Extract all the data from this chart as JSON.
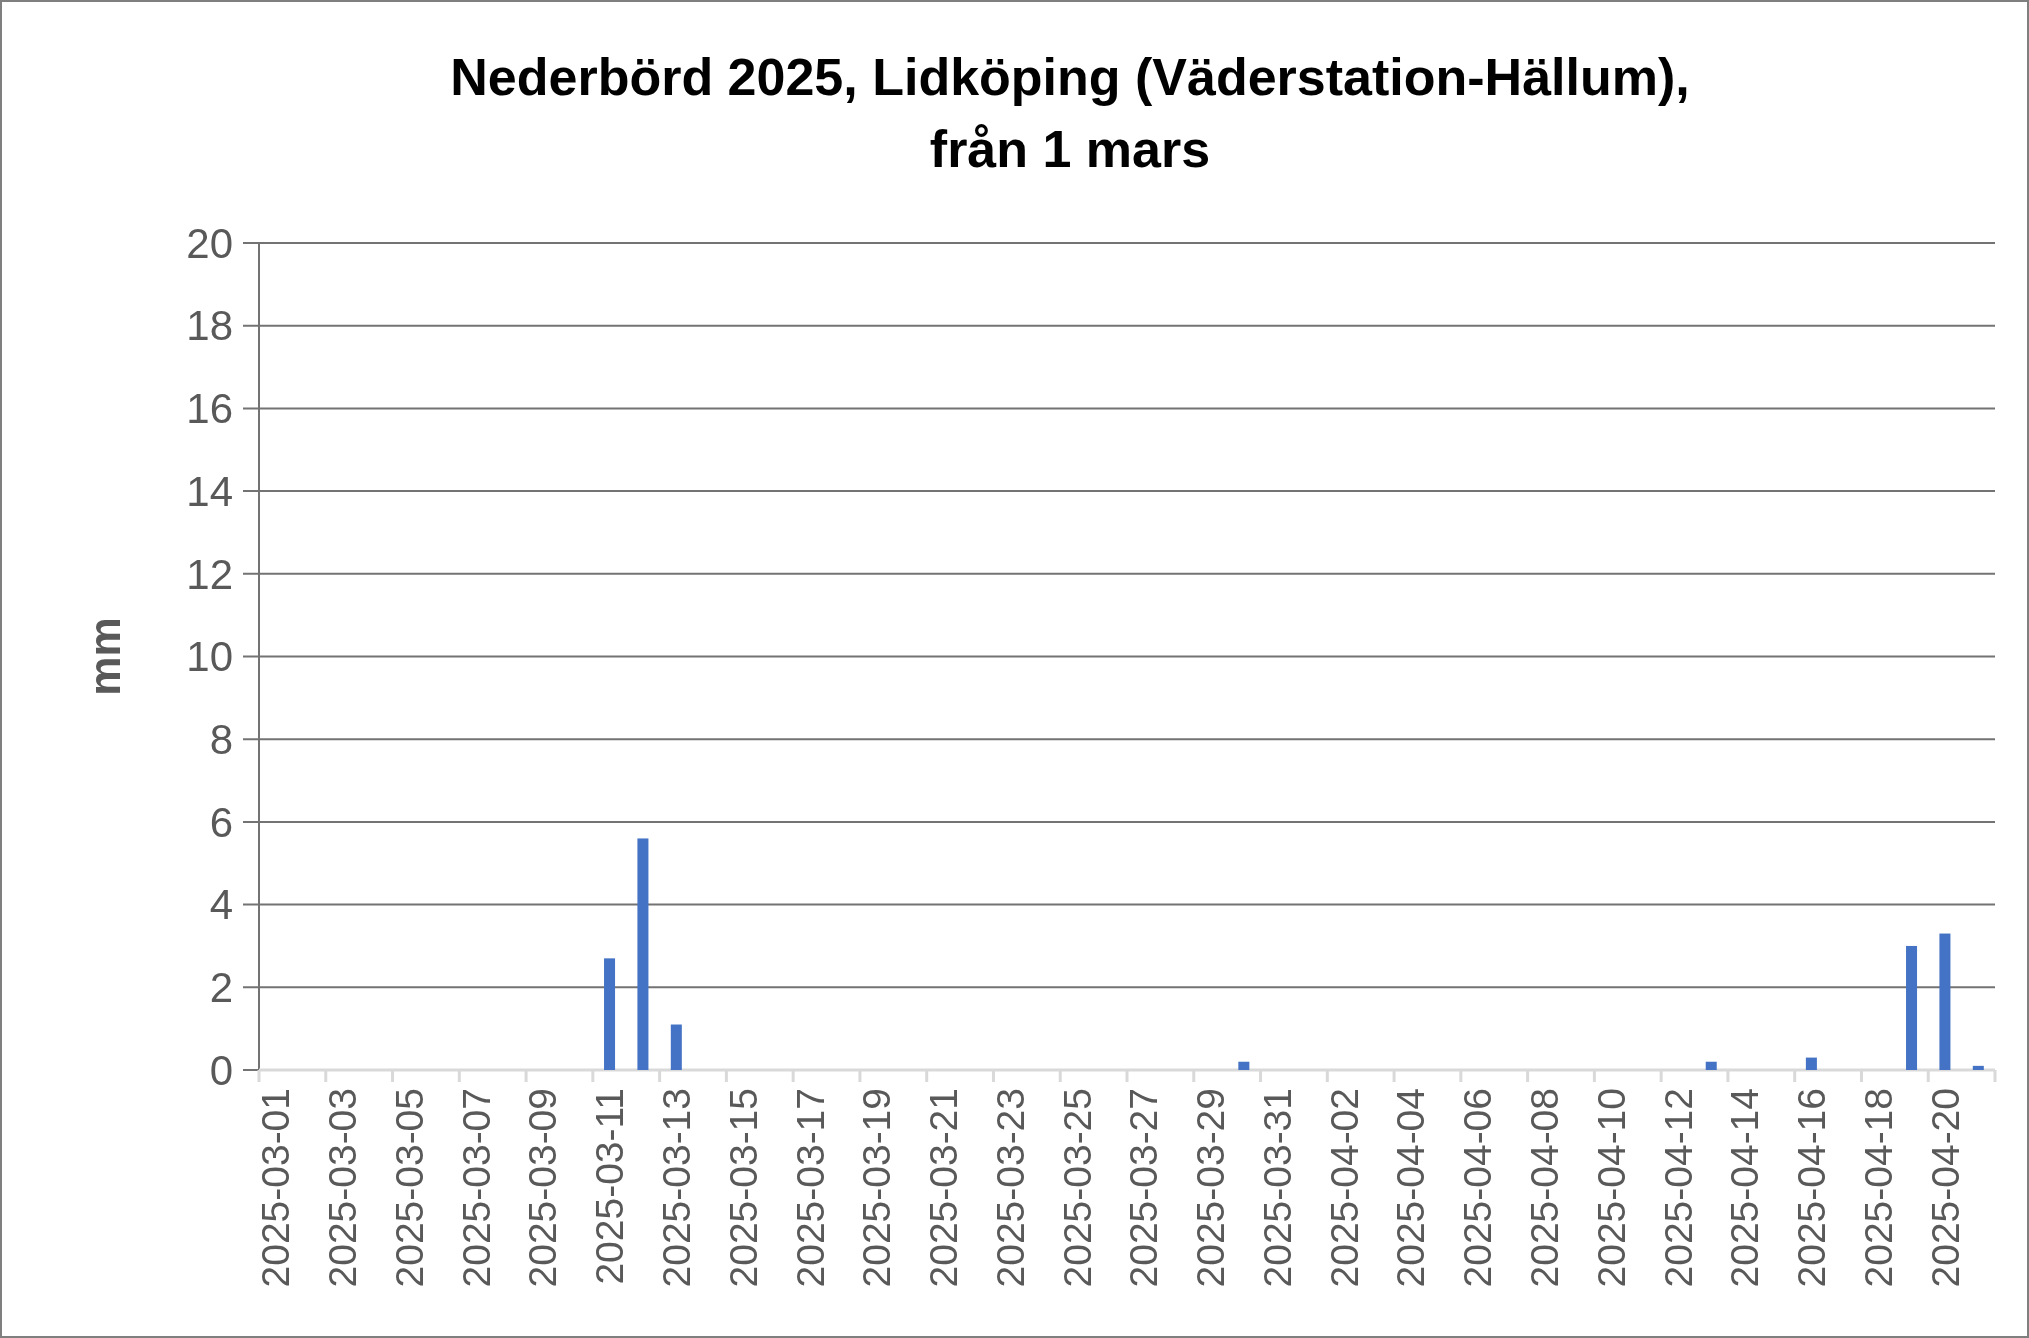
{
  "chart_data": {
    "type": "bar",
    "title": "Nederbörd 2025, Lidköping (Väderstation-Hällum),\nfrån 1 mars",
    "ylabel": "mm",
    "categories": [
      "2025-03-01",
      null,
      "2025-03-03",
      null,
      "2025-03-05",
      null,
      "2025-03-07",
      null,
      "2025-03-09",
      null,
      "2025-03-11",
      null,
      "2025-03-13",
      null,
      "2025-03-15",
      null,
      "2025-03-17",
      null,
      "2025-03-19",
      null,
      "2025-03-21",
      null,
      "2025-03-23",
      null,
      "2025-03-25",
      null,
      "2025-03-27",
      null,
      "2025-03-29",
      null,
      "2025-03-31",
      null,
      "2025-04-02",
      null,
      "2025-04-04",
      null,
      "2025-04-06",
      null,
      "2025-04-08",
      null,
      "2025-04-10",
      null,
      "2025-04-12",
      null,
      "2025-04-14",
      null,
      "2025-04-16",
      null,
      "2025-04-18",
      null,
      "2025-04-20",
      null
    ],
    "values": [
      0,
      0,
      0,
      0,
      0,
      0,
      0,
      0,
      0,
      0,
      2.7,
      5.6,
      1.1,
      0,
      0,
      0,
      0,
      0,
      0,
      0,
      0,
      0,
      0,
      0,
      0,
      0,
      0,
      0,
      0,
      0.2,
      0,
      0,
      0,
      0,
      0,
      0,
      0,
      0,
      0,
      0,
      0,
      0,
      0,
      0.2,
      0,
      0,
      0.3,
      0,
      0,
      3.0,
      3.3,
      0.1
    ],
    "color": "#4472c4",
    "ylim": [
      0,
      20
    ],
    "yticks": [
      0,
      2,
      4,
      6,
      8,
      10,
      12,
      14,
      16,
      18,
      20
    ],
    "grid": "y"
  }
}
